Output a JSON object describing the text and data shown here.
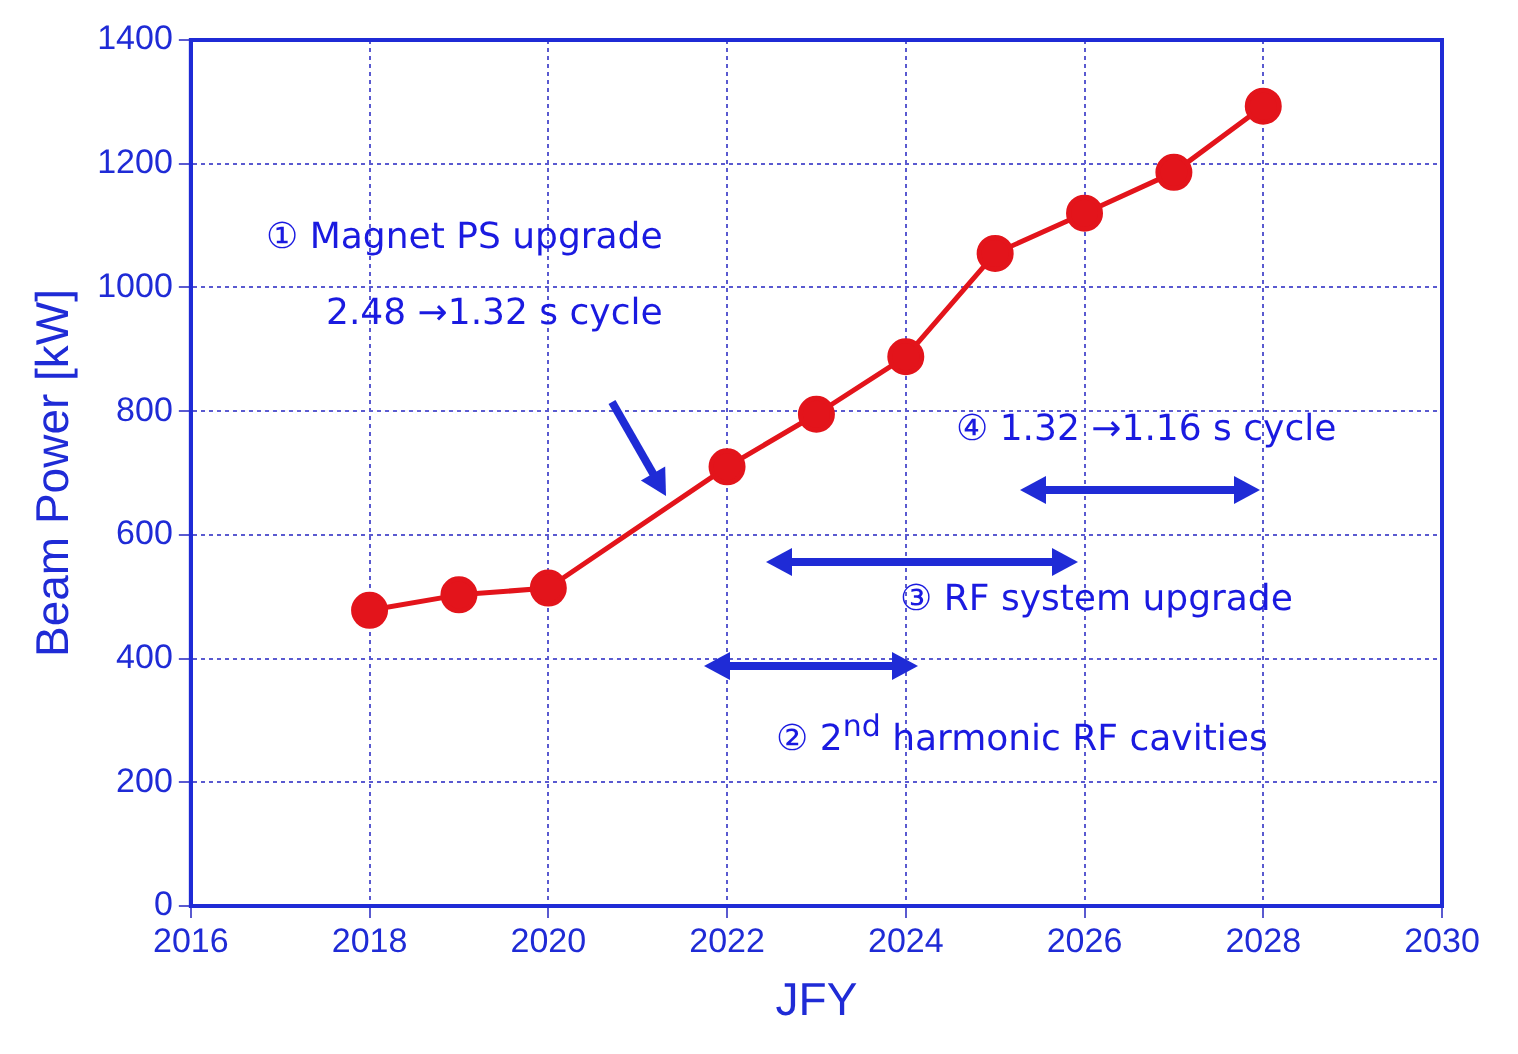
{
  "chart_data": {
    "type": "line",
    "xlabel": "JFY",
    "ylabel": "Beam Power [kW]",
    "x": [
      2018,
      2019,
      2020,
      2022,
      2023,
      2024,
      2025,
      2026,
      2027,
      2028
    ],
    "series": [
      {
        "color": "#e3141b",
        "values": [
          478,
          503,
          514,
          710,
          795,
          888,
          1055,
          1120,
          1186,
          1293
        ]
      }
    ],
    "xlim": [
      2016,
      2030
    ],
    "xticks": [
      2016,
      2018,
      2020,
      2022,
      2024,
      2026,
      2028,
      2030
    ],
    "ylim": [
      0,
      1400
    ],
    "yticks": [
      0,
      200,
      400,
      600,
      800,
      1000,
      1200,
      1400
    ],
    "grid": true,
    "legend": false,
    "marker": "circle",
    "line_style": "solid",
    "annotations": [
      "① Magnet PS upgrade\n2.48 →1.32 s cycle",
      "④ 1.32 →1.16 s cycle",
      "③ RF system upgrade",
      "② 2$^{nd}$ harmonic RF cavities"
    ]
  }
}
